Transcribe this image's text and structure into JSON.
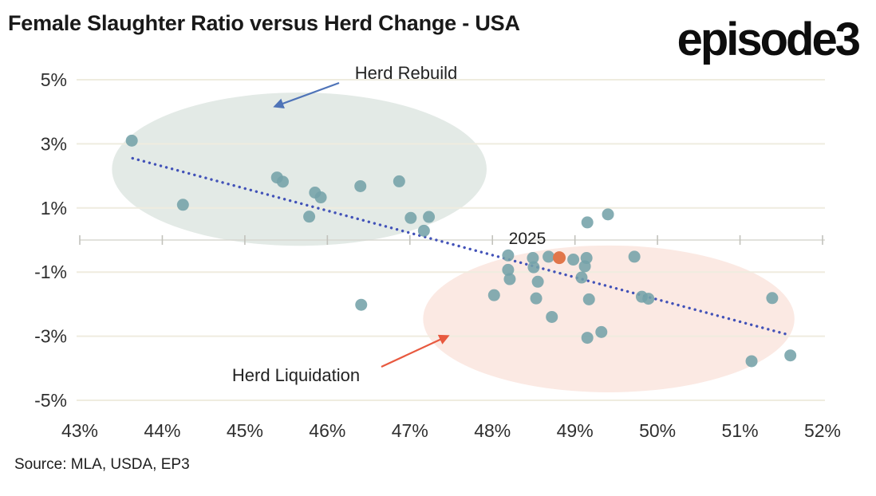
{
  "header": {
    "title": "Female Slaughter Ratio versus Herd Change - USA",
    "logo": "episode3"
  },
  "footer": {
    "source": "Source: MLA, USDA, EP3"
  },
  "colors": {
    "point_teal": "#74a2a9",
    "point_orange": "#e1764a",
    "trendline_blue": "#4252b8",
    "rebuild_ellipse": "#e3eae6",
    "liquidation_ellipse": "#fbe9e3",
    "arrow_blue": "#4f74b8",
    "arrow_red": "#e8593f",
    "gridline": "#efecdf",
    "zero_axis": "#d8d8d0",
    "tick": "#c2c2bc",
    "axis_text": "#2f2f2f",
    "annotation_text": "#222222"
  },
  "chart_data": {
    "type": "scatter",
    "title": "Female Slaughter Ratio versus Herd Change - USA",
    "xlabel": "",
    "ylabel": "",
    "xlim": [
      43,
      52
    ],
    "ylim": [
      -5,
      5
    ],
    "x_tick_values": [
      43,
      44,
      45,
      46,
      47,
      48,
      49,
      50,
      51,
      52
    ],
    "x_tick_labels": [
      "43%",
      "44%",
      "45%",
      "46%",
      "47%",
      "48%",
      "49%",
      "50%",
      "51%",
      "52%"
    ],
    "y_tick_values": [
      5,
      3,
      1,
      -1,
      -3,
      -5
    ],
    "y_tick_labels": [
      "5%",
      "3%",
      "1%",
      "-1%",
      "-3%",
      "-5%"
    ],
    "grid": "horizontal-only",
    "series": [
      {
        "name": "historical-years",
        "color": "#74a2a9",
        "points": [
          [
            43.63,
            3.1
          ],
          [
            44.25,
            1.1
          ],
          [
            45.39,
            1.95
          ],
          [
            45.46,
            1.82
          ],
          [
            45.78,
            0.73
          ],
          [
            45.85,
            1.48
          ],
          [
            45.92,
            1.33
          ],
          [
            46.4,
            1.68
          ],
          [
            46.41,
            -2.02
          ],
          [
            46.87,
            1.83
          ],
          [
            47.01,
            0.69
          ],
          [
            47.17,
            0.29
          ],
          [
            47.23,
            0.72
          ],
          [
            48.02,
            -1.72
          ],
          [
            48.19,
            -0.48
          ],
          [
            48.19,
            -0.93
          ],
          [
            48.21,
            -1.22
          ],
          [
            48.49,
            -0.56
          ],
          [
            48.5,
            -0.85
          ],
          [
            48.53,
            -1.82
          ],
          [
            48.55,
            -1.3
          ],
          [
            48.68,
            -0.52
          ],
          [
            48.72,
            -2.4
          ],
          [
            48.98,
            -0.61
          ],
          [
            49.08,
            -1.17
          ],
          [
            49.12,
            -0.82
          ],
          [
            49.14,
            -0.56
          ],
          [
            49.15,
            0.55
          ],
          [
            49.15,
            -3.05
          ],
          [
            49.17,
            -1.85
          ],
          [
            49.32,
            -2.87
          ],
          [
            49.4,
            0.8
          ],
          [
            49.72,
            -0.52
          ],
          [
            49.81,
            -1.77
          ],
          [
            49.89,
            -1.83
          ],
          [
            51.14,
            -3.78
          ],
          [
            51.39,
            -1.81
          ],
          [
            51.61,
            -3.6
          ]
        ]
      },
      {
        "name": "year-2025",
        "color": "#e1764a",
        "points": [
          [
            48.81,
            -0.55
          ]
        ]
      }
    ],
    "trendline": {
      "style": "dotted",
      "color": "#4252b8",
      "x1": 43.64,
      "y1": 2.55,
      "x2": 51.58,
      "y2": -2.95
    },
    "regions": [
      {
        "name": "herd-rebuild-ellipse",
        "cx": 45.66,
        "cy": 2.21,
        "rx": 2.27,
        "ry": 2.39,
        "color": "#e3eae6"
      },
      {
        "name": "herd-liquidation-ellipse",
        "cx": 49.41,
        "cy": -2.46,
        "rx": 2.25,
        "ry": 2.29,
        "color": "#fbe9e3"
      }
    ],
    "annotations": [
      {
        "id": "herd-rebuild-label",
        "text": "Herd Rebuild"
      },
      {
        "id": "herd-liquidation-label",
        "text": "Herd Liquidation"
      },
      {
        "id": "point-2025-label",
        "text": "2025"
      }
    ],
    "legend": "none"
  }
}
